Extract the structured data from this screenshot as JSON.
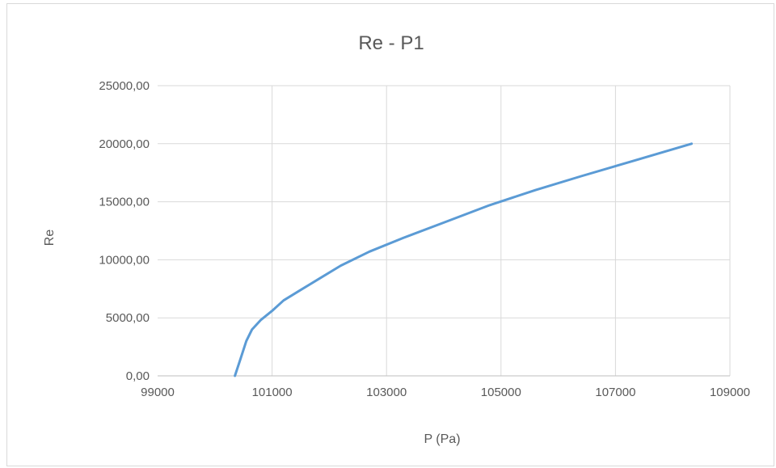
{
  "chart_data": {
    "type": "line",
    "title": "Re - P1",
    "xlabel": "P (Pa)",
    "ylabel": "Re",
    "xlim": [
      99000,
      109000
    ],
    "ylim": [
      0,
      25000
    ],
    "x_ticks": [
      "99000",
      "101000",
      "103000",
      "105000",
      "107000",
      "109000"
    ],
    "x_tick_values": [
      99000,
      101000,
      103000,
      105000,
      107000,
      109000
    ],
    "y_ticks": [
      "0,00",
      "5000,00",
      "10000,00",
      "15000,00",
      "20000,00",
      "25000,00"
    ],
    "y_tick_values": [
      0,
      5000,
      10000,
      15000,
      20000,
      25000
    ],
    "grid": true,
    "legend": "none",
    "line_color": "#5b9bd5",
    "series": [
      {
        "x": [
          100350,
          100450,
          100550,
          100650,
          100800,
          101000,
          101200,
          101500,
          101800,
          102200,
          102700,
          103300,
          104000,
          104800,
          105600,
          106400,
          107300,
          108330
        ],
        "values": [
          0,
          1500,
          3000,
          4000,
          4800,
          5600,
          6500,
          7400,
          8300,
          9500,
          10700,
          11900,
          13200,
          14700,
          16000,
          17200,
          18500,
          20000
        ]
      }
    ]
  }
}
